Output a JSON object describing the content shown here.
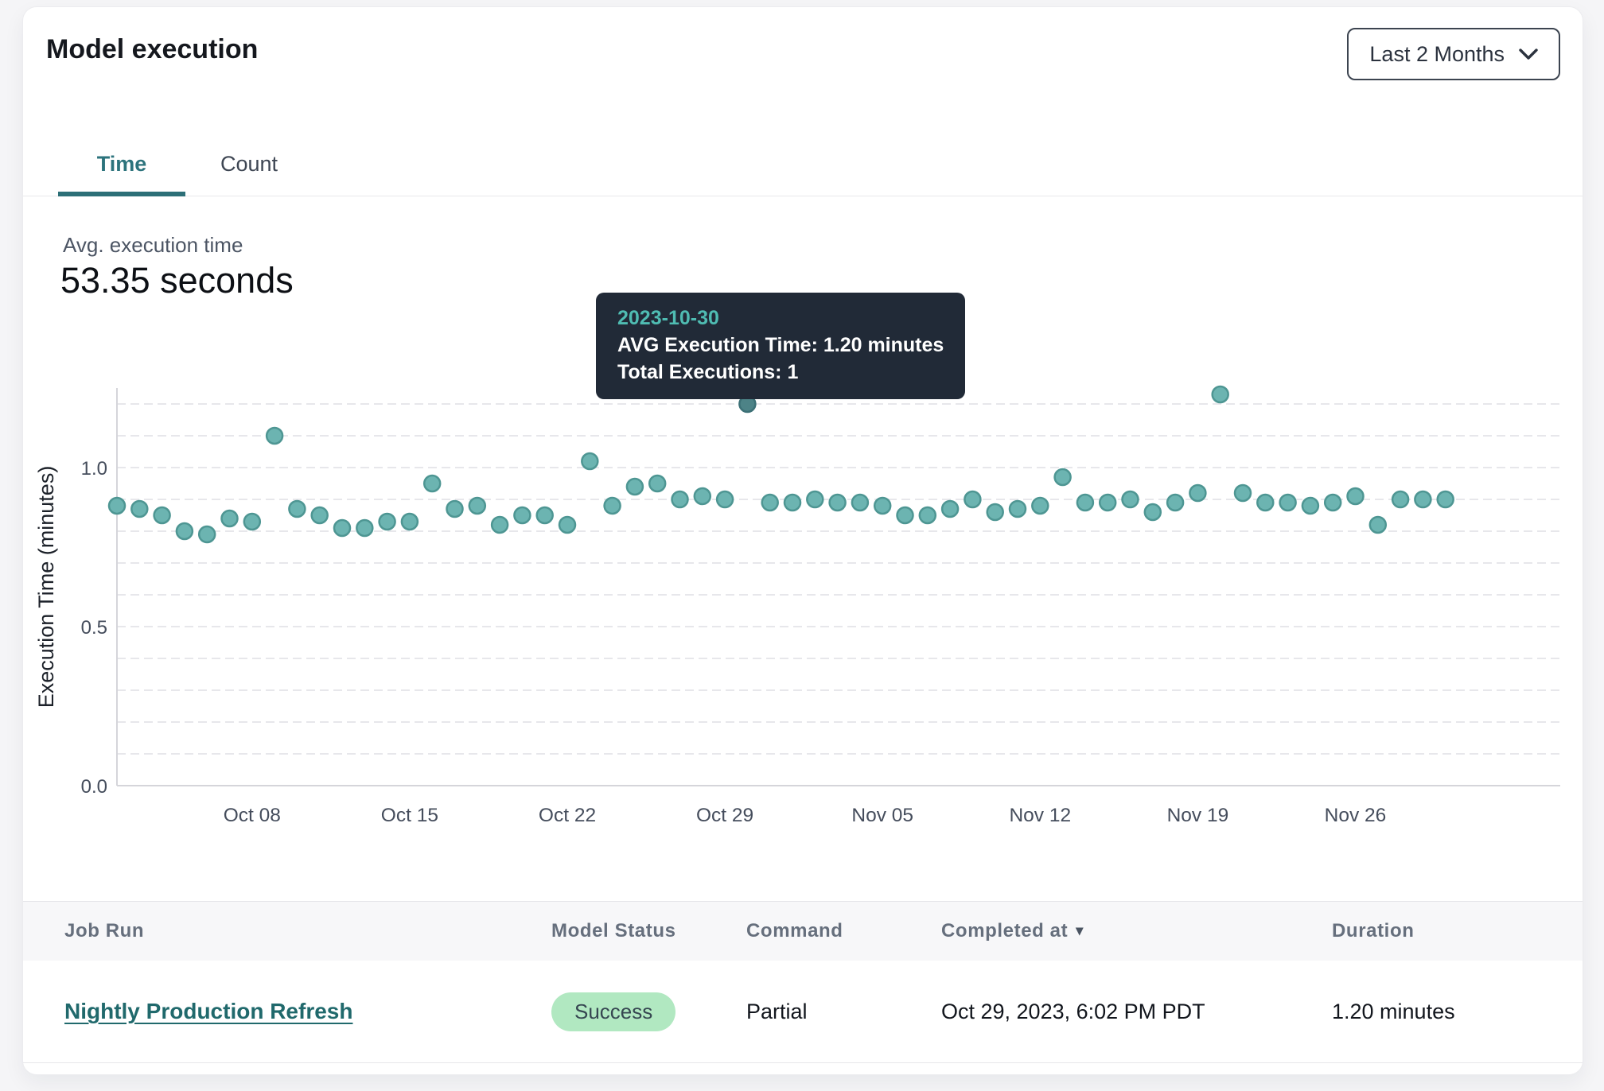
{
  "header": {
    "title": "Model execution",
    "range_label": "Last 2 Months"
  },
  "tabs": [
    {
      "label": "Time",
      "active": true
    },
    {
      "label": "Count",
      "active": false
    }
  ],
  "kpi": {
    "label": "Avg. execution time",
    "value": "53.35 seconds"
  },
  "tooltip": {
    "date": "2023-10-30",
    "avg_line": "AVG Execution Time: 1.20 minutes",
    "total_line": "Total Executions: 1"
  },
  "colors": {
    "accent_teal": "#2c737c",
    "link_teal": "#20696c",
    "badge_green_bg": "#b1e8c1",
    "tooltip_bg": "#212a37",
    "tooltip_date": "#4fbcb2"
  },
  "chart_data": {
    "type": "scatter",
    "title": "",
    "xlabel": "",
    "ylabel": "Execution Time (minutes)",
    "ylim": [
      0,
      1.25
    ],
    "grid": "horizontal-dashed-every-0.1-to-1.2",
    "legend": "none",
    "y_ticks": [
      "0.0",
      "0.5",
      "1.0"
    ],
    "x_ticks": [
      "Oct 08",
      "Oct 15",
      "Oct 22",
      "Oct 29",
      "Nov 05",
      "Nov 12",
      "Nov 19",
      "Nov 26"
    ],
    "highlight_date": "2023-10-30",
    "colors": {
      "point_fill": "#6cb4b1",
      "point_stroke": "#4e9693",
      "highlight_fill": "#4d8387",
      "highlight_stroke": "#3c7076",
      "grid": "#e7e7eb",
      "axis": "#d5d5da",
      "tick_text": "#454d5c",
      "axis_title": "#1c2129"
    },
    "points": [
      {
        "date": "2023-10-02",
        "value": 0.88
      },
      {
        "date": "2023-10-03",
        "value": 0.87
      },
      {
        "date": "2023-10-04",
        "value": 0.85
      },
      {
        "date": "2023-10-05",
        "value": 0.8
      },
      {
        "date": "2023-10-06",
        "value": 0.79
      },
      {
        "date": "2023-10-07",
        "value": 0.84
      },
      {
        "date": "2023-10-08",
        "value": 0.83
      },
      {
        "date": "2023-10-09",
        "value": 1.1
      },
      {
        "date": "2023-10-10",
        "value": 0.87
      },
      {
        "date": "2023-10-11",
        "value": 0.85
      },
      {
        "date": "2023-10-12",
        "value": 0.81
      },
      {
        "date": "2023-10-13",
        "value": 0.81
      },
      {
        "date": "2023-10-14",
        "value": 0.83
      },
      {
        "date": "2023-10-15",
        "value": 0.83
      },
      {
        "date": "2023-10-16",
        "value": 0.95
      },
      {
        "date": "2023-10-17",
        "value": 0.87
      },
      {
        "date": "2023-10-18",
        "value": 0.88
      },
      {
        "date": "2023-10-19",
        "value": 0.82
      },
      {
        "date": "2023-10-20",
        "value": 0.85
      },
      {
        "date": "2023-10-21",
        "value": 0.85
      },
      {
        "date": "2023-10-22",
        "value": 0.82
      },
      {
        "date": "2023-10-23",
        "value": 1.02
      },
      {
        "date": "2023-10-24",
        "value": 0.88
      },
      {
        "date": "2023-10-25",
        "value": 0.94
      },
      {
        "date": "2023-10-26",
        "value": 0.95
      },
      {
        "date": "2023-10-27",
        "value": 0.9
      },
      {
        "date": "2023-10-28",
        "value": 0.91
      },
      {
        "date": "2023-10-29",
        "value": 0.9
      },
      {
        "date": "2023-10-30",
        "value": 1.2
      },
      {
        "date": "2023-10-31",
        "value": 0.89
      },
      {
        "date": "2023-11-01",
        "value": 0.89
      },
      {
        "date": "2023-11-02",
        "value": 0.9
      },
      {
        "date": "2023-11-03",
        "value": 0.89
      },
      {
        "date": "2023-11-04",
        "value": 0.89
      },
      {
        "date": "2023-11-05",
        "value": 0.88
      },
      {
        "date": "2023-11-06",
        "value": 0.85
      },
      {
        "date": "2023-11-07",
        "value": 0.85
      },
      {
        "date": "2023-11-08",
        "value": 0.87
      },
      {
        "date": "2023-11-09",
        "value": 0.9
      },
      {
        "date": "2023-11-10",
        "value": 0.86
      },
      {
        "date": "2023-11-11",
        "value": 0.87
      },
      {
        "date": "2023-11-12",
        "value": 0.88
      },
      {
        "date": "2023-11-13",
        "value": 0.97
      },
      {
        "date": "2023-11-14",
        "value": 0.89
      },
      {
        "date": "2023-11-15",
        "value": 0.89
      },
      {
        "date": "2023-11-16",
        "value": 0.9
      },
      {
        "date": "2023-11-17",
        "value": 0.86
      },
      {
        "date": "2023-11-18",
        "value": 0.89
      },
      {
        "date": "2023-11-19",
        "value": 0.92
      },
      {
        "date": "2023-11-20",
        "value": 1.23
      },
      {
        "date": "2023-11-21",
        "value": 0.92
      },
      {
        "date": "2023-11-22",
        "value": 0.89
      },
      {
        "date": "2023-11-23",
        "value": 0.89
      },
      {
        "date": "2023-11-24",
        "value": 0.88
      },
      {
        "date": "2023-11-25",
        "value": 0.89
      },
      {
        "date": "2023-11-26",
        "value": 0.91
      },
      {
        "date": "2023-11-27",
        "value": 0.82
      },
      {
        "date": "2023-11-28",
        "value": 0.9
      },
      {
        "date": "2023-11-29",
        "value": 0.9
      },
      {
        "date": "2023-11-30",
        "value": 0.9
      }
    ]
  },
  "table": {
    "columns": [
      {
        "label": "Job Run"
      },
      {
        "label": "Model Status"
      },
      {
        "label": "Command"
      },
      {
        "label": "Completed at",
        "sorted": "desc"
      },
      {
        "label": "Duration"
      }
    ],
    "rows": [
      {
        "job_run": "Nightly Production Refresh",
        "model_status": "Success",
        "command": "Partial",
        "completed_at": "Oct 29, 2023, 6:02 PM PDT",
        "duration": "1.20 minutes"
      }
    ]
  }
}
